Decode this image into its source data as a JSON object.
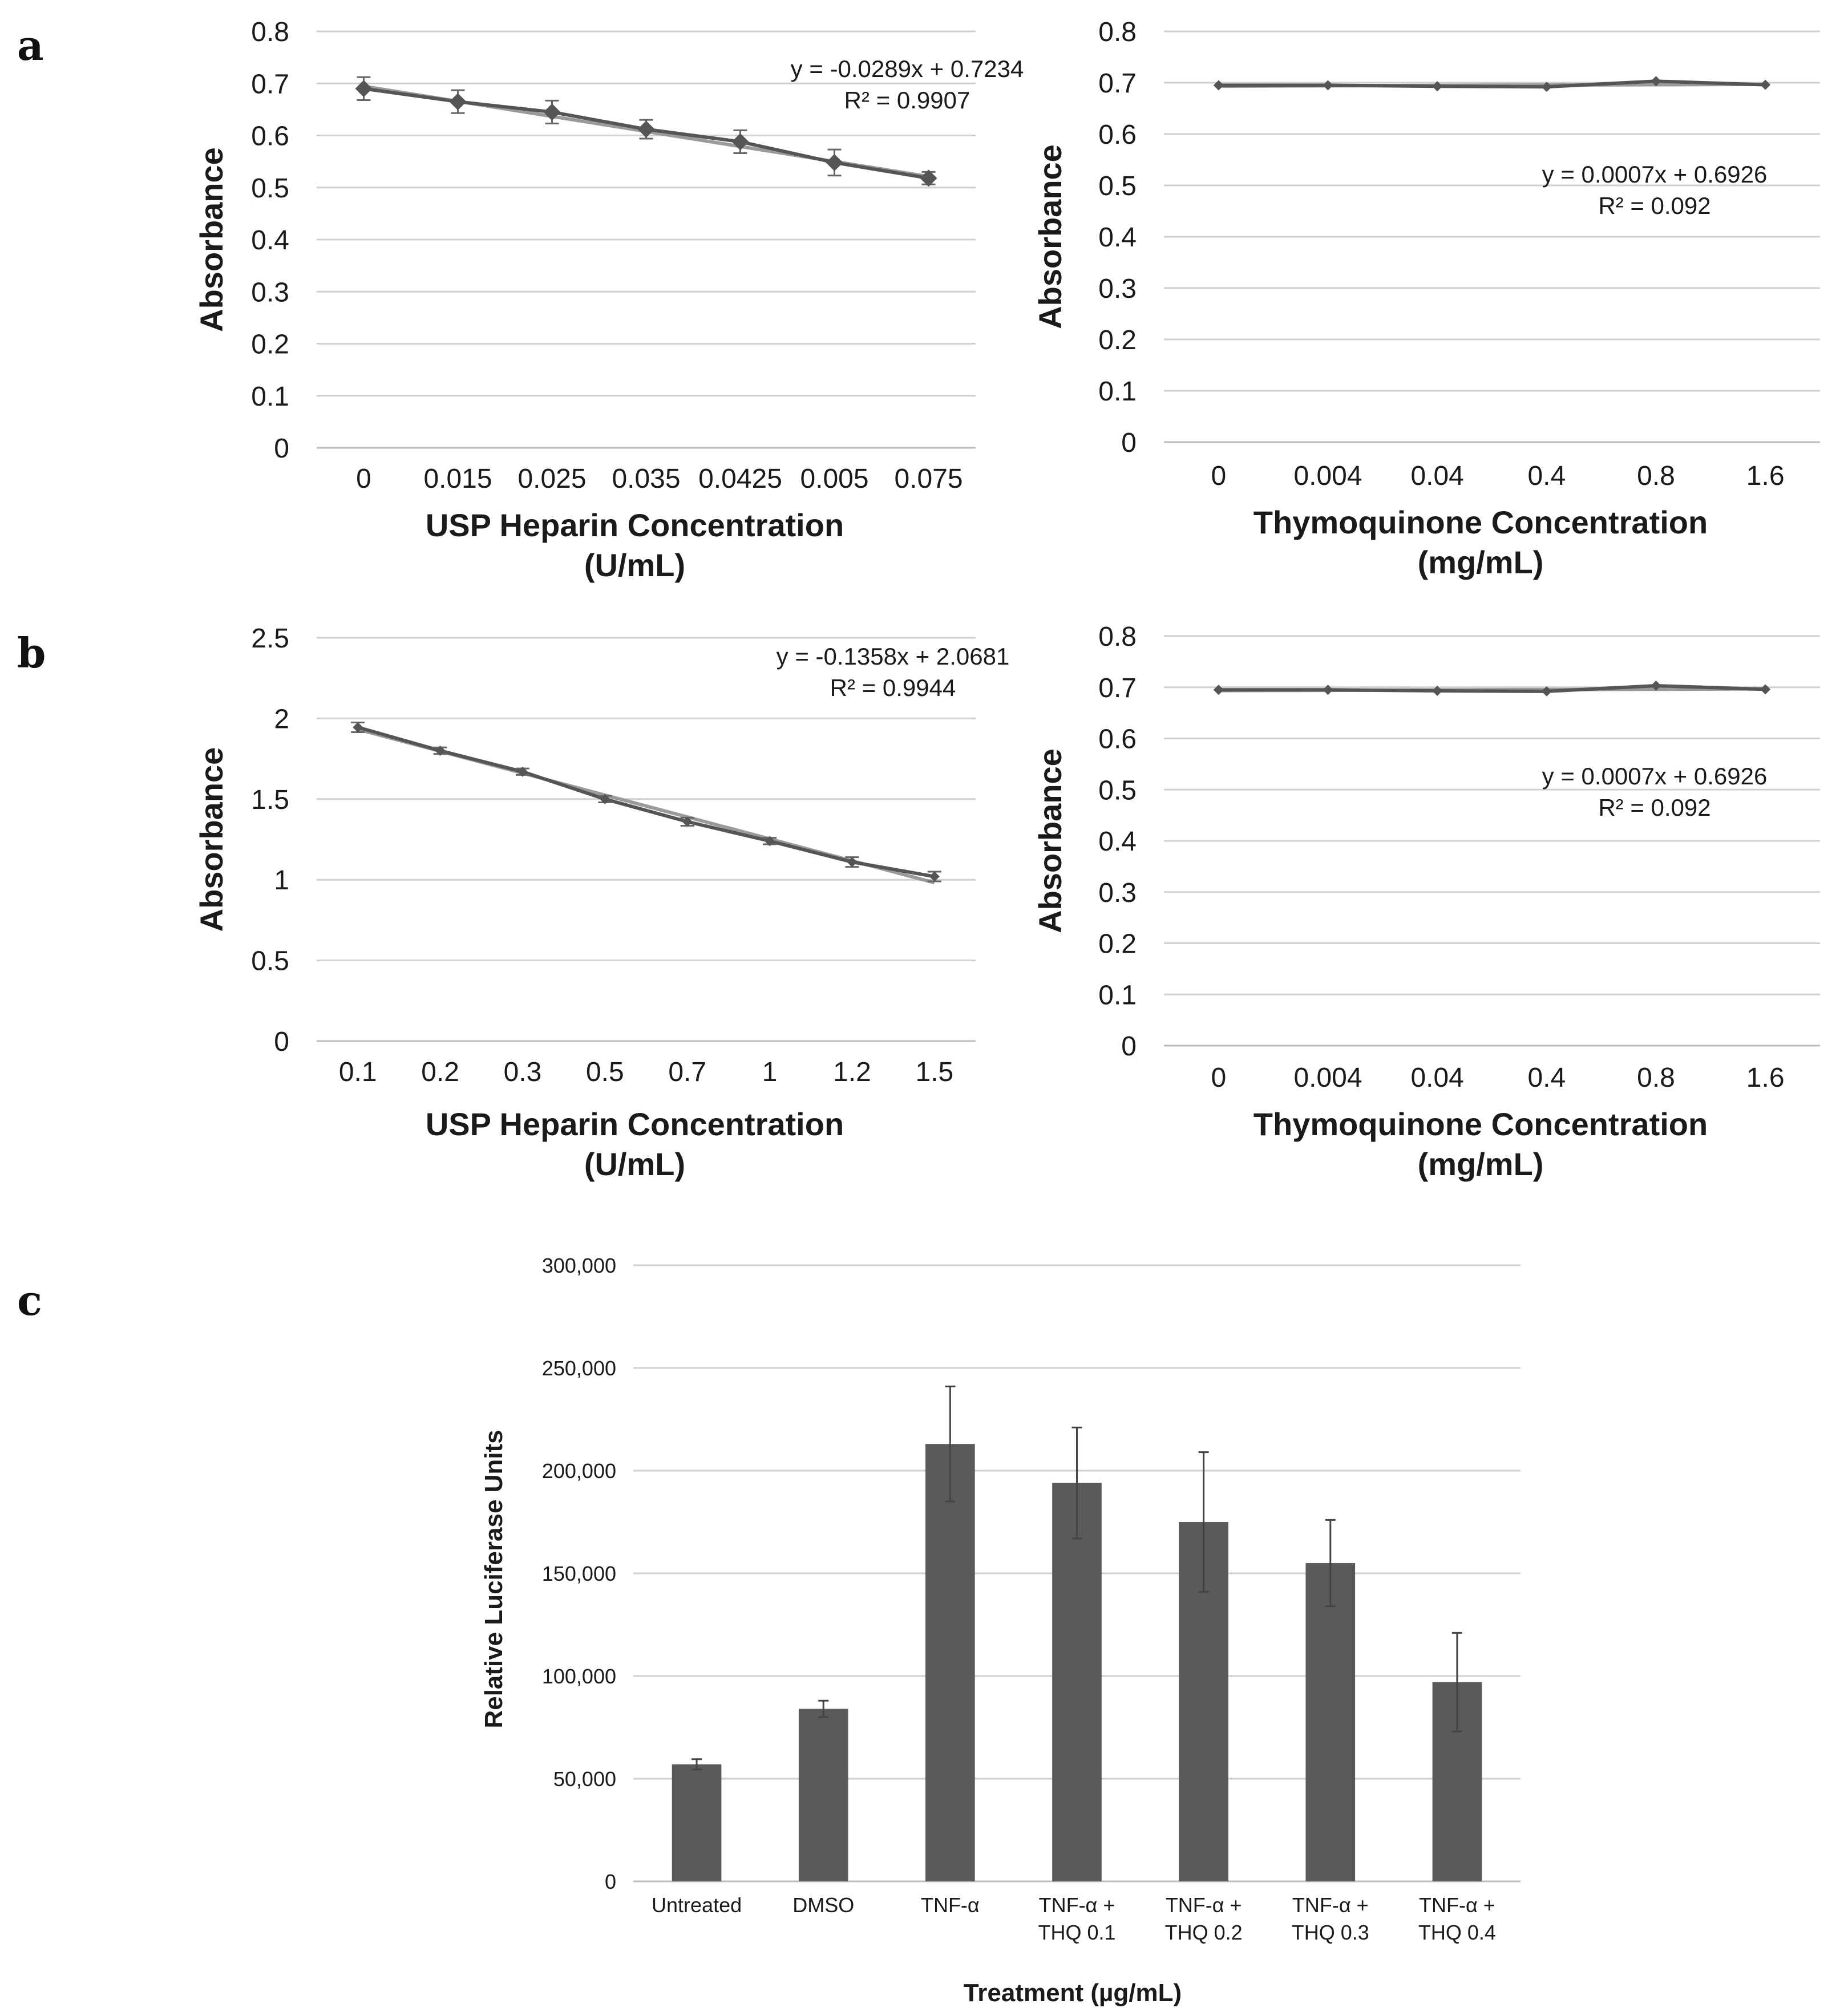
{
  "panel_letters": [
    "a",
    "b",
    "c"
  ],
  "chart_data": [
    {
      "id": "a-left",
      "type": "line",
      "panel": "a",
      "ylabel": "Absorbance",
      "xlabel": [
        "USP Heparin Concentration",
        "(U/mL)"
      ],
      "categories": [
        "0",
        "0.015",
        "0.025",
        "0.035",
        "0.0425",
        "0.005",
        "0.075"
      ],
      "ylim": [
        0,
        0.8
      ],
      "yticks": [
        "0",
        "0.1",
        "0.2",
        "0.3",
        "0.4",
        "0.5",
        "0.6",
        "0.7",
        "0.8"
      ],
      "series": [
        {
          "name": "data",
          "values": [
            0.69,
            0.665,
            0.645,
            0.612,
            0.588,
            0.548,
            0.518
          ],
          "errors": [
            0.022,
            0.022,
            0.022,
            0.018,
            0.022,
            0.025,
            0.012
          ]
        },
        {
          "name": "linear fit",
          "values": [
            0.6945,
            0.6656,
            0.6367,
            0.6078,
            0.5789,
            0.55,
            0.5211
          ]
        }
      ],
      "annotation": [
        "y = -0.0289x + 0.7234",
        "R² = 0.9907"
      ],
      "grid": true
    },
    {
      "id": "a-right",
      "type": "line",
      "panel": "a",
      "ylabel": "Absorbance",
      "xlabel": [
        "Thymoquinone Concentration",
        "(mg/mL)"
      ],
      "categories": [
        "0",
        "0.004",
        "0.04",
        "0.4",
        "0.8",
        "1.6"
      ],
      "ylim": [
        0,
        0.8
      ],
      "yticks": [
        "0",
        "0.1",
        "0.2",
        "0.3",
        "0.4",
        "0.5",
        "0.6",
        "0.7",
        "0.8"
      ],
      "series": [
        {
          "name": "data",
          "values": [
            0.695,
            0.695,
            0.693,
            0.692,
            0.703,
            0.696
          ]
        },
        {
          "name": "linear fit",
          "values": [
            0.6933,
            0.694,
            0.6947,
            0.6954,
            0.6961,
            0.6968
          ]
        }
      ],
      "annotation": [
        "y = 0.0007x + 0.6926",
        "R² = 0.092"
      ],
      "grid": true
    },
    {
      "id": "b-left",
      "type": "line",
      "panel": "b",
      "ylabel": "Absorbance",
      "xlabel": [
        "USP Heparin Concentration",
        "(U/mL)"
      ],
      "categories": [
        "0.1",
        "0.2",
        "0.3",
        "0.5",
        "0.7",
        "1",
        "1.2",
        "1.5"
      ],
      "ylim": [
        0,
        2.5
      ],
      "yticks": [
        "0",
        "0.5",
        "1",
        "1.5",
        "2",
        "2.5"
      ],
      "series": [
        {
          "name": "data",
          "values": [
            1.945,
            1.8,
            1.67,
            1.5,
            1.36,
            1.24,
            1.11,
            1.02
          ],
          "errors": [
            0.03,
            0.02,
            0.02,
            0.02,
            0.025,
            0.02,
            0.03,
            0.03
          ]
        },
        {
          "name": "linear fit",
          "values": [
            1.9323,
            1.7965,
            1.6607,
            1.5249,
            1.3891,
            1.2533,
            1.1175,
            0.9817
          ]
        }
      ],
      "annotation": [
        "y = -0.1358x + 2.0681",
        "R² = 0.9944"
      ],
      "grid": true
    },
    {
      "id": "b-right",
      "type": "line",
      "panel": "b",
      "ylabel": "Absorbance",
      "xlabel": [
        "Thymoquinone Concentration",
        "(mg/mL)"
      ],
      "categories": [
        "0",
        "0.004",
        "0.04",
        "0.4",
        "0.8",
        "1.6"
      ],
      "ylim": [
        0,
        0.8
      ],
      "yticks": [
        "0",
        "0.1",
        "0.2",
        "0.3",
        "0.4",
        "0.5",
        "0.6",
        "0.7",
        "0.8"
      ],
      "series": [
        {
          "name": "data",
          "values": [
            0.695,
            0.695,
            0.693,
            0.692,
            0.703,
            0.696
          ]
        },
        {
          "name": "linear fit",
          "values": [
            0.6933,
            0.694,
            0.6947,
            0.6954,
            0.6961,
            0.6968
          ]
        }
      ],
      "annotation": [
        "y = 0.0007x + 0.6926",
        "R² = 0.092"
      ],
      "grid": true
    },
    {
      "id": "c",
      "type": "bar",
      "panel": "c",
      "ylabel": "Relative Luciferase Units",
      "xlabel": "Treatment (µg/mL)",
      "categories": [
        [
          "Untreated"
        ],
        [
          "DMSO"
        ],
        [
          "TNF-α"
        ],
        [
          "TNF-α +",
          "THQ 0.1"
        ],
        [
          "TNF-α +",
          "THQ 0.2"
        ],
        [
          "TNF-α +",
          "THQ 0.3"
        ],
        [
          "TNF-α +",
          "THQ 0.4"
        ]
      ],
      "values": [
        57000,
        84000,
        213000,
        194000,
        175000,
        155000,
        97000
      ],
      "errors": [
        2500,
        4000,
        28000,
        27000,
        34000,
        21000,
        24000
      ],
      "ylim": [
        0,
        300000
      ],
      "yticks": [
        "0",
        "50,000",
        "100,000",
        "150,000",
        "200,000",
        "250,000",
        "300,000"
      ],
      "grid": true
    }
  ],
  "colors": {
    "marker": "#555555",
    "fit": "#9a9a9a",
    "bar": "#5a5a5a",
    "grid": "#cfcfcf",
    "text": "#1a1a1a"
  }
}
